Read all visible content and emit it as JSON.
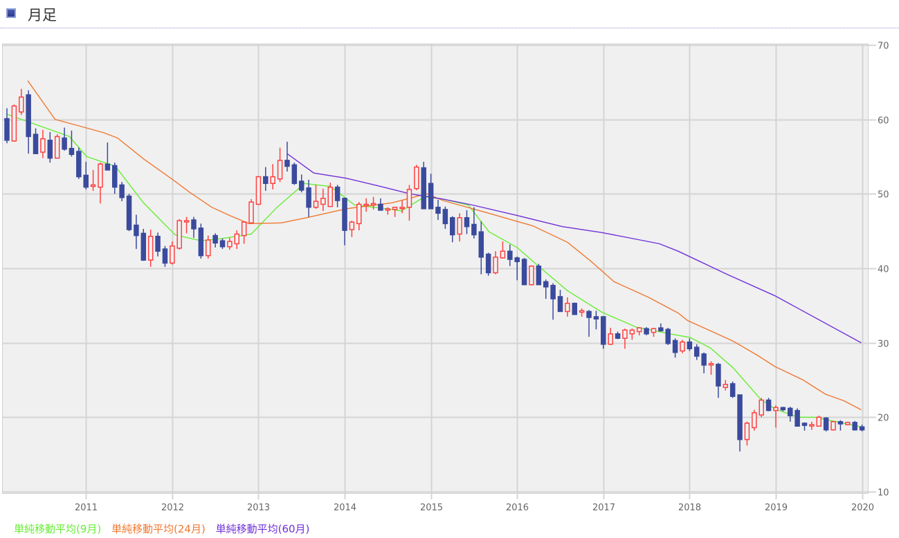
{
  "header": {
    "title": "月足",
    "icon": "chart-square-icon"
  },
  "colors": {
    "up": "#ff4040",
    "down": "#3a4a9c",
    "ma9": "#66ee33",
    "ma24": "#f07830",
    "ma60": "#7030d8",
    "grid": "#d4d4d4",
    "plot_bg": "#f0f0f0"
  },
  "chart_data": {
    "type": "candlestick",
    "title": "月足",
    "start_month": "2010-01",
    "x_ticks": [
      "2011",
      "2012",
      "2013",
      "2014",
      "2015",
      "2016",
      "2017",
      "2018",
      "2019",
      "2020"
    ],
    "x_tick_month_index": [
      11,
      23,
      35,
      47,
      59,
      71,
      83,
      95,
      107,
      119
    ],
    "y_ticks": [
      "10",
      "20",
      "30",
      "40",
      "50",
      "60",
      "70"
    ],
    "ylim": [
      10,
      70
    ],
    "y_axis_side": "right",
    "grid": true,
    "legend_position": "bottom-left",
    "ohlc": [
      [
        60.1,
        61.5,
        56.8,
        57.2
      ],
      [
        57.1,
        62,
        57,
        61.8
      ],
      [
        61,
        64.1,
        60.6,
        63
      ],
      [
        63.3,
        63.9,
        55.4,
        57.7
      ],
      [
        58,
        58.8,
        55.4,
        55.4
      ],
      [
        55.6,
        58.6,
        54.8,
        57.4
      ],
      [
        57.2,
        58.3,
        54.2,
        54.8
      ],
      [
        54.8,
        58,
        54.8,
        57.7
      ],
      [
        57.5,
        58.9,
        55.8,
        56
      ],
      [
        56.1,
        58.5,
        55,
        55.3
      ],
      [
        55.7,
        56.2,
        52,
        52.3
      ],
      [
        52.5,
        54.3,
        50.6,
        50.9
      ],
      [
        51,
        53.2,
        50.4,
        51.2
      ],
      [
        50.9,
        54.2,
        48.7,
        54
      ],
      [
        54,
        56.9,
        53.2,
        53.2
      ],
      [
        53.8,
        54.2,
        50,
        50.9
      ],
      [
        51.2,
        51.6,
        49,
        49.5
      ],
      [
        49.7,
        50,
        45,
        45.2
      ],
      [
        45.8,
        47.2,
        42.6,
        44.4
      ],
      [
        44.7,
        45.3,
        41,
        41.1
      ],
      [
        41.1,
        45.2,
        40.2,
        44.3
      ],
      [
        44.3,
        44.8,
        41.6,
        42.3
      ],
      [
        42.6,
        43,
        40.2,
        40.7
      ],
      [
        40.7,
        43.6,
        40.5,
        43
      ],
      [
        42.7,
        46.6,
        42.5,
        46.4
      ],
      [
        46.3,
        46.9,
        44.7,
        46.4
      ],
      [
        46.5,
        46.9,
        44.1,
        45.3
      ],
      [
        45.4,
        46,
        41.3,
        41.7
      ],
      [
        41.7,
        44.4,
        41.3,
        43.8
      ],
      [
        44.4,
        44.7,
        42.8,
        43.4
      ],
      [
        43.7,
        44,
        42.6,
        42.9
      ],
      [
        42.9,
        44.1,
        42.5,
        43.6
      ],
      [
        43.3,
        45.1,
        42.6,
        44.6
      ],
      [
        44.4,
        46.3,
        43.3,
        46.2
      ],
      [
        46.1,
        49.3,
        46,
        48.9
      ],
      [
        48.6,
        52.4,
        48.5,
        52.3
      ],
      [
        52.3,
        53.6,
        50.4,
        51.4
      ],
      [
        51.4,
        54,
        50.6,
        52.3
      ],
      [
        52,
        56.2,
        51.6,
        54.5
      ],
      [
        54.5,
        57,
        53,
        53.7
      ],
      [
        53.9,
        54.2,
        51.2,
        51.4
      ],
      [
        51.7,
        52.6,
        50.2,
        50.5
      ],
      [
        50.8,
        51.9,
        46.9,
        48.2
      ],
      [
        48.2,
        51.2,
        48,
        49
      ],
      [
        48.6,
        50.7,
        47.7,
        49.4
      ],
      [
        48.3,
        51.5,
        48.3,
        50.9
      ],
      [
        50.9,
        51.2,
        48.2,
        49.1
      ],
      [
        49.4,
        49.5,
        43.1,
        45.1
      ],
      [
        45.2,
        46.4,
        44.2,
        46.2
      ],
      [
        46,
        48.9,
        45.1,
        48.6
      ],
      [
        48.5,
        49.4,
        47.6,
        48.6
      ],
      [
        48.6,
        49.6,
        47.9,
        48.7
      ],
      [
        48.6,
        49.4,
        47.8,
        47.8
      ],
      [
        47.9,
        48.2,
        47.2,
        48
      ],
      [
        47.9,
        48.2,
        46.9,
        48.2
      ],
      [
        48.1,
        49.1,
        47.4,
        48.2
      ],
      [
        48.2,
        51.2,
        46.4,
        50.6
      ],
      [
        50.7,
        53.9,
        50.5,
        53.6
      ],
      [
        53.5,
        54.3,
        48,
        48
      ],
      [
        51.4,
        52.7,
        48,
        48
      ],
      [
        48.2,
        49.2,
        46.5,
        47.4
      ],
      [
        47.9,
        48.3,
        45.3,
        46
      ],
      [
        46.8,
        47,
        43.5,
        44.5
      ],
      [
        44.6,
        47.4,
        43.6,
        46.8
      ],
      [
        46.8,
        47.8,
        44.6,
        45.6
      ],
      [
        45.9,
        48.2,
        44,
        44.5
      ],
      [
        44.9,
        46.3,
        39.2,
        41.5
      ],
      [
        41.9,
        42.1,
        39,
        39.4
      ],
      [
        39.4,
        42.3,
        39.2,
        41.5
      ],
      [
        41.4,
        43.6,
        41.3,
        42.3
      ],
      [
        42.3,
        43.2,
        40.3,
        41.2
      ],
      [
        41.4,
        41.6,
        38.4,
        40.9
      ],
      [
        41.2,
        41.4,
        37.8,
        37.8
      ],
      [
        37.8,
        40.4,
        37.7,
        40.3
      ],
      [
        40.3,
        40.6,
        37.8,
        37.8
      ],
      [
        38.2,
        38.5,
        35.9,
        37.5
      ],
      [
        37.7,
        38,
        33.1,
        35.9
      ],
      [
        36.2,
        37.1,
        34.2,
        34.2
      ],
      [
        34.2,
        36.1,
        33.5,
        35.3
      ],
      [
        35.3,
        35.4,
        33.8,
        33.8
      ],
      [
        34.1,
        34.6,
        33.5,
        34.3
      ],
      [
        34.2,
        34.4,
        30.8,
        33.4
      ],
      [
        33.5,
        34.3,
        31.8,
        33.2
      ],
      [
        33.5,
        33.6,
        29.2,
        29.8
      ],
      [
        29.8,
        32,
        29.7,
        31.2
      ],
      [
        31.2,
        31.5,
        30.5,
        30.6
      ],
      [
        30.6,
        31.9,
        29.2,
        31.7
      ],
      [
        31.2,
        31.9,
        30.4,
        31.7
      ],
      [
        31.5,
        32.1,
        31,
        32
      ],
      [
        31.9,
        32.1,
        31,
        31.2
      ],
      [
        31.4,
        32,
        30.8,
        31.9
      ],
      [
        32,
        32.6,
        31.5,
        31.6
      ],
      [
        31.8,
        32,
        29.7,
        29.9
      ],
      [
        30.3,
        30.6,
        28,
        28.7
      ],
      [
        28.9,
        30.4,
        28.6,
        30.1
      ],
      [
        30.1,
        30.6,
        28.9,
        29.2
      ],
      [
        29.4,
        29.8,
        27.7,
        28.2
      ],
      [
        28.5,
        28.7,
        25.9,
        27
      ],
      [
        27.1,
        27.5,
        25.7,
        27.2
      ],
      [
        27.1,
        27.3,
        22.6,
        24.2
      ],
      [
        24,
        25,
        23.6,
        24.4
      ],
      [
        24.5,
        24.8,
        22.6,
        22.8
      ],
      [
        23,
        23,
        15.4,
        17
      ],
      [
        17,
        19.4,
        16.2,
        19.2
      ],
      [
        18.6,
        21,
        18.2,
        20.6
      ],
      [
        20.3,
        22.6,
        20,
        22.3
      ],
      [
        22.3,
        22.6,
        20.8,
        20.9
      ],
      [
        20.9,
        21.6,
        18.6,
        21.3
      ],
      [
        21.3,
        21.4,
        20.8,
        21
      ],
      [
        21.2,
        21.4,
        19.4,
        20.2
      ],
      [
        20.9,
        21.2,
        18.8,
        18.8
      ],
      [
        19.2,
        19.3,
        18.2,
        18.9
      ],
      [
        18.9,
        19.4,
        18.3,
        19
      ],
      [
        18.8,
        20.2,
        18.8,
        20
      ],
      [
        19.9,
        20,
        18.1,
        18.3
      ],
      [
        18.3,
        19.5,
        18.2,
        19.4
      ],
      [
        19.4,
        19.6,
        18.2,
        19.1
      ],
      [
        19,
        19.4,
        18.9,
        19.3
      ],
      [
        19.3,
        19.5,
        18.2,
        18.3
      ],
      [
        18.7,
        19,
        18.1,
        18.3
      ]
    ],
    "series": [
      {
        "name": "単純移動平均(9月)",
        "color_key": "ma9",
        "points": [
          [
            0,
            60.7
          ],
          [
            8.7,
            57.7
          ],
          [
            11.1,
            55
          ],
          [
            15.1,
            53.7
          ],
          [
            19,
            48.8
          ],
          [
            23.4,
            44.5
          ],
          [
            27,
            43.7
          ],
          [
            29.9,
            44
          ],
          [
            34,
            44.6
          ],
          [
            37.6,
            48.2
          ],
          [
            41.4,
            51.4
          ],
          [
            45,
            51
          ],
          [
            48.4,
            48.5
          ],
          [
            53.6,
            47.9
          ],
          [
            54.9,
            47.7
          ],
          [
            58.1,
            49.6
          ],
          [
            60.7,
            49.3
          ],
          [
            64.2,
            48.5
          ],
          [
            67.1,
            44.9
          ],
          [
            71,
            42.8
          ],
          [
            74.2,
            40.1
          ],
          [
            78,
            37
          ],
          [
            82.8,
            34.1
          ],
          [
            87.6,
            32.1
          ],
          [
            92.2,
            31.2
          ],
          [
            95.1,
            30.7
          ],
          [
            97.9,
            29.3
          ],
          [
            101.1,
            26.6
          ],
          [
            104.9,
            22.4
          ],
          [
            106.9,
            21.1
          ],
          [
            110.1,
            20
          ],
          [
            112.4,
            20
          ],
          [
            118.9,
            18.7
          ]
        ]
      },
      {
        "name": "単純移動平均(24月)",
        "color_key": "ma24",
        "points": [
          [
            2.9,
            65.2
          ],
          [
            6.7,
            60
          ],
          [
            10.9,
            58.9
          ],
          [
            13.5,
            58.2
          ],
          [
            15.4,
            57.5
          ],
          [
            19,
            54.7
          ],
          [
            23.1,
            51.9
          ],
          [
            25.3,
            50.3
          ],
          [
            28.5,
            48.2
          ],
          [
            31,
            47.1
          ],
          [
            33.7,
            46.0
          ],
          [
            38.2,
            46.1
          ],
          [
            41.7,
            46.8
          ],
          [
            47.2,
            48
          ],
          [
            53.6,
            48.8
          ],
          [
            56.8,
            49.6
          ],
          [
            58.5,
            50
          ],
          [
            60.7,
            49.1
          ],
          [
            66.7,
            47.5
          ],
          [
            71,
            46.3
          ],
          [
            73.2,
            45.7
          ],
          [
            78,
            43.5
          ],
          [
            81.2,
            41
          ],
          [
            84.5,
            38.2
          ],
          [
            89.3,
            36.1
          ],
          [
            93.4,
            34
          ],
          [
            94.7,
            33
          ],
          [
            97.9,
            31.6
          ],
          [
            101.1,
            30.2
          ],
          [
            104.3,
            28.4
          ],
          [
            106.9,
            26.8
          ],
          [
            110.8,
            25
          ],
          [
            113.9,
            23.1
          ],
          [
            116.5,
            22.2
          ],
          [
            118.9,
            21
          ]
        ]
      },
      {
        "name": "単純移動平均(60月)",
        "color_key": "ma60",
        "points": [
          [
            39,
            55.4
          ],
          [
            42.7,
            52.8
          ],
          [
            47.2,
            52.1
          ],
          [
            52,
            51
          ],
          [
            56.1,
            50
          ],
          [
            60.7,
            49.3
          ],
          [
            64.8,
            48.5
          ],
          [
            71,
            47.1
          ],
          [
            77.3,
            45.6
          ],
          [
            82.8,
            44.8
          ],
          [
            87.6,
            43.9
          ],
          [
            90.8,
            43.3
          ],
          [
            93.4,
            42.3
          ],
          [
            100.2,
            39.2
          ],
          [
            106.9,
            36.3
          ],
          [
            118.9,
            30
          ]
        ]
      }
    ]
  }
}
